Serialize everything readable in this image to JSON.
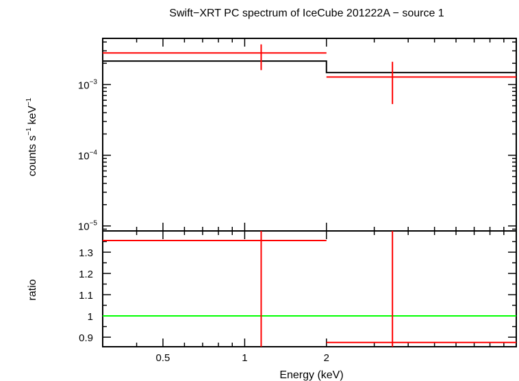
{
  "chart_data": {
    "type": "line",
    "title": "Swift−XRT PC spectrum of IceCube 201222A − source 1",
    "xlabel": "Energy (keV)",
    "x_scale": "log",
    "xlim": [
      0.3,
      10
    ],
    "xticks": [
      {
        "value": 0.5,
        "label": "0.5"
      },
      {
        "value": 1,
        "label": "1"
      },
      {
        "value": 2,
        "label": "2"
      }
    ],
    "colors": {
      "data": "#ff0000",
      "model": "#000000",
      "unity": "#00ff00"
    },
    "panels": [
      {
        "name": "spectrum",
        "ylabel_parts": [
          "counts s",
          "−1",
          " keV",
          "−1"
        ],
        "y_scale": "log",
        "ylim": [
          8.5e-06,
          0.0045
        ],
        "yticks": [
          {
            "value": 1e-05,
            "base": "10",
            "exp": "−5"
          },
          {
            "value": 0.0001,
            "base": "10",
            "exp": "−4"
          },
          {
            "value": 0.001,
            "base": "10",
            "exp": "−3"
          }
        ],
        "data_points": [
          {
            "x": 1.15,
            "xlo": 0.3,
            "xhi": 2.0,
            "y": 0.0028,
            "ylo": 0.0016,
            "yhi": 0.0037
          },
          {
            "x": 3.5,
            "xlo": 2.0,
            "xhi": 10.0,
            "y": 0.00128,
            "ylo": 0.00053,
            "yhi": 0.0021
          }
        ],
        "model_steps": [
          {
            "xlo": 0.3,
            "xhi": 2.0,
            "y": 0.00215
          },
          {
            "xlo": 2.0,
            "xhi": 10.0,
            "y": 0.00148
          }
        ]
      },
      {
        "name": "ratio",
        "ylabel": "ratio",
        "y_scale": "linear",
        "ylim": [
          0.855,
          1.4
        ],
        "yticks": [
          {
            "value": 0.9,
            "label": "0.9"
          },
          {
            "value": 1.0,
            "label": "1"
          },
          {
            "value": 1.1,
            "label": "1.1"
          },
          {
            "value": 1.2,
            "label": "1.2"
          },
          {
            "value": 1.3,
            "label": "1.3"
          }
        ],
        "reference_line": 1.0,
        "data_points": [
          {
            "x": 1.15,
            "xlo": 0.3,
            "xhi": 2.0,
            "y": 1.355,
            "ylo": 0.855,
            "yhi": 1.4
          },
          {
            "x": 3.5,
            "xlo": 2.0,
            "xhi": 10.0,
            "y": 0.875,
            "ylo": 0.855,
            "yhi": 1.4
          }
        ]
      }
    ]
  }
}
